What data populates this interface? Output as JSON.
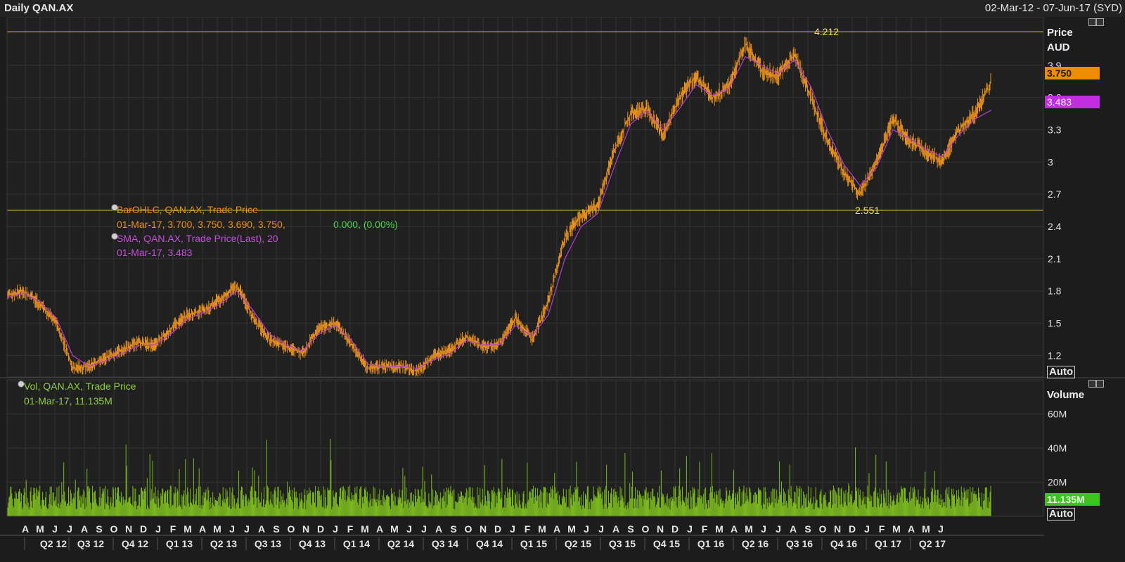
{
  "header": {
    "title": "Daily QAN.AX",
    "range": "02-Mar-12 - 07-Jun-17 (SYD)"
  },
  "colors": {
    "price": "#e8901e",
    "sma": "#b83cd6",
    "volume": "#7ab81e",
    "hline": "#d8c83a",
    "grid": "#333333",
    "bg": "#1c1c1c"
  },
  "legend": {
    "price_name": "BarOHLC, QAN.AX, Trade Price",
    "price_date": "01-Mar-17, 3.700, 3.750, 3.690, 3.750,",
    "price_change": "0.000, (0.00%)",
    "sma_name": "SMA, QAN.AX, Trade Price(Last),  20",
    "sma_value": "01-Mar-17, 3.483",
    "vol_name": "Vol, QAN.AX, Trade Price",
    "vol_value": "01-Mar-17, 11.135M"
  },
  "price_axis": {
    "title_1": "Price",
    "title_2": "AUD",
    "last_tag": "3.750",
    "sma_tag": "3.483",
    "auto": "Auto"
  },
  "volume_axis": {
    "title": "Volume",
    "last_tag": "11.135M",
    "auto": "Auto"
  },
  "chart_data": {
    "type": "line",
    "title": "Daily QAN.AX",
    "ylim": [
      1.0,
      4.35
    ],
    "yticks": [
      "3.9",
      "3.6",
      "3.3",
      "3",
      "2.7",
      "2.4",
      "2.1",
      "1.8",
      "1.5",
      "1.2"
    ],
    "hlines": [
      {
        "value": 4.212,
        "label": "4.212"
      },
      {
        "value": 2.551,
        "label": "2.551"
      }
    ],
    "months": [
      "A",
      "M",
      "J",
      "J",
      "A",
      "S",
      "O",
      "N",
      "D",
      "J",
      "F",
      "M",
      "A",
      "M",
      "J",
      "J",
      "A",
      "S",
      "O",
      "N",
      "D",
      "J",
      "F",
      "M",
      "A",
      "M",
      "J",
      "J",
      "A",
      "S",
      "O",
      "N",
      "D",
      "J",
      "F",
      "M",
      "A",
      "M",
      "J",
      "J",
      "A",
      "S",
      "O",
      "N",
      "D",
      "J",
      "F",
      "M",
      "A",
      "M",
      "J",
      "J",
      "A",
      "S",
      "O",
      "N",
      "D",
      "J",
      "F",
      "M",
      "A",
      "M",
      "J"
    ],
    "quarters": [
      "Q2 12",
      "Q3 12",
      "Q4 12",
      "Q1 13",
      "Q2 13",
      "Q3 13",
      "Q4 13",
      "Q1 14",
      "Q2 14",
      "Q3 14",
      "Q4 14",
      "Q1 15",
      "Q2 15",
      "Q3 15",
      "Q4 15",
      "Q1 16",
      "Q2 16",
      "Q3 16",
      "Q4 16",
      "Q1 17",
      "Q2 17"
    ],
    "series": [
      {
        "name": "BarOHLC, QAN.AX, Trade Price",
        "x": [
          "Mar-12",
          "Apr-12",
          "May-12",
          "Jun-12",
          "Jul-12",
          "Aug-12",
          "Sep-12",
          "Oct-12",
          "Nov-12",
          "Dec-12",
          "Jan-13",
          "Feb-13",
          "Mar-13",
          "Apr-13",
          "May-13",
          "Jun-13",
          "Jul-13",
          "Aug-13",
          "Sep-13",
          "Oct-13",
          "Nov-13",
          "Dec-13",
          "Jan-14",
          "Feb-14",
          "Mar-14",
          "Apr-14",
          "May-14",
          "Jun-14",
          "Jul-14",
          "Aug-14",
          "Sep-14",
          "Oct-14",
          "Nov-14",
          "Dec-14",
          "Jan-15",
          "Feb-15",
          "Mar-15",
          "Apr-15",
          "May-15",
          "Jun-15",
          "Jul-15",
          "Aug-15",
          "Sep-15",
          "Oct-15",
          "Nov-15",
          "Dec-15",
          "Jan-16",
          "Feb-16",
          "Mar-16",
          "Apr-16",
          "May-16",
          "Jun-16",
          "Jul-16",
          "Aug-16",
          "Sep-16",
          "Oct-16",
          "Nov-16",
          "Dec-16",
          "Jan-17",
          "Feb-17",
          "Mar-17"
        ],
        "values": [
          1.76,
          1.8,
          1.68,
          1.5,
          1.08,
          1.1,
          1.18,
          1.25,
          1.32,
          1.3,
          1.45,
          1.58,
          1.62,
          1.72,
          1.85,
          1.55,
          1.35,
          1.28,
          1.22,
          1.45,
          1.5,
          1.3,
          1.08,
          1.1,
          1.1,
          1.05,
          1.2,
          1.25,
          1.38,
          1.28,
          1.3,
          1.55,
          1.35,
          1.7,
          2.3,
          2.5,
          2.6,
          3.1,
          3.45,
          3.5,
          3.25,
          3.6,
          3.8,
          3.6,
          3.7,
          4.1,
          3.85,
          3.8,
          4.0,
          3.6,
          3.2,
          2.9,
          2.7,
          3.0,
          3.4,
          3.2,
          3.1,
          3.0,
          3.3,
          3.45,
          3.75
        ]
      },
      {
        "name": "SMA, QAN.AX, Trade Price(Last),  20",
        "x": [
          "Mar-12",
          "Apr-12",
          "May-12",
          "Jun-12",
          "Jul-12",
          "Aug-12",
          "Sep-12",
          "Oct-12",
          "Nov-12",
          "Dec-12",
          "Jan-13",
          "Feb-13",
          "Mar-13",
          "Apr-13",
          "May-13",
          "Jun-13",
          "Jul-13",
          "Aug-13",
          "Sep-13",
          "Oct-13",
          "Nov-13",
          "Dec-13",
          "Jan-14",
          "Feb-14",
          "Mar-14",
          "Apr-14",
          "May-14",
          "Jun-14",
          "Jul-14",
          "Aug-14",
          "Sep-14",
          "Oct-14",
          "Nov-14",
          "Dec-14",
          "Jan-15",
          "Feb-15",
          "Mar-15",
          "Apr-15",
          "May-15",
          "Jun-15",
          "Jul-15",
          "Aug-15",
          "Sep-15",
          "Oct-15",
          "Nov-15",
          "Dec-15",
          "Jan-16",
          "Feb-16",
          "Mar-16",
          "Apr-16",
          "May-16",
          "Jun-16",
          "Jul-16",
          "Aug-16",
          "Sep-16",
          "Oct-16",
          "Nov-16",
          "Dec-16",
          "Jan-17",
          "Feb-17",
          "Mar-17"
        ],
        "values": [
          1.74,
          1.78,
          1.7,
          1.55,
          1.2,
          1.1,
          1.15,
          1.22,
          1.29,
          1.3,
          1.4,
          1.54,
          1.6,
          1.68,
          1.8,
          1.62,
          1.4,
          1.3,
          1.24,
          1.4,
          1.48,
          1.34,
          1.12,
          1.09,
          1.1,
          1.08,
          1.16,
          1.22,
          1.34,
          1.3,
          1.3,
          1.48,
          1.38,
          1.58,
          2.1,
          2.4,
          2.52,
          2.95,
          3.35,
          3.48,
          3.3,
          3.5,
          3.72,
          3.62,
          3.68,
          3.98,
          3.9,
          3.82,
          3.95,
          3.7,
          3.3,
          2.98,
          2.78,
          2.95,
          3.3,
          3.22,
          3.12,
          3.05,
          3.25,
          3.4,
          3.483
        ]
      }
    ],
    "volume": {
      "name": "Vol, QAN.AX, Trade Price",
      "unit": "M",
      "yticks": [
        "60M",
        "40M",
        "20M"
      ],
      "ylim": [
        0,
        80
      ],
      "last": 11.135
    }
  }
}
